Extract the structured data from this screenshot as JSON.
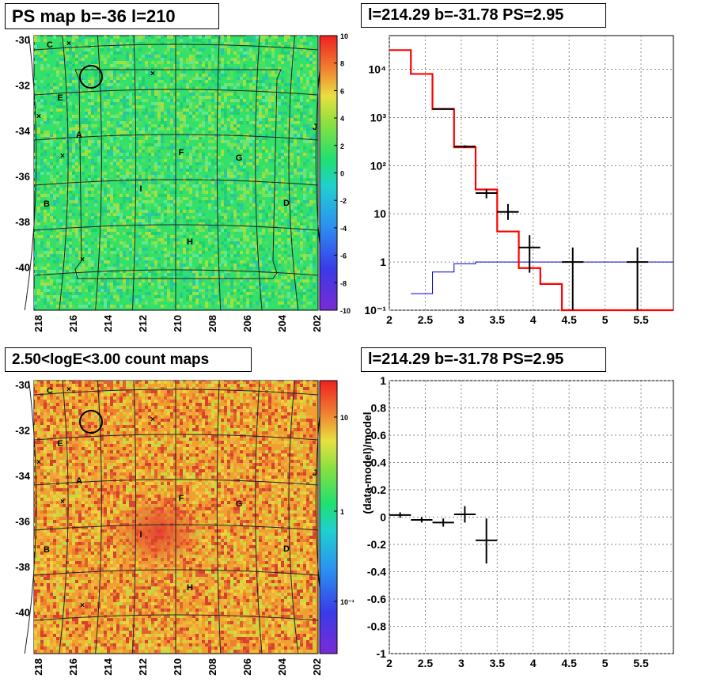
{
  "titles": {
    "tl": "PS map b=-36 l=210",
    "tr": "l=214.29 b=-31.78 PS=2.95",
    "bl": "2.50<logE<3.00 count maps",
    "br": "l=214.29 b=-31.78 PS=2.95"
  },
  "colors": {
    "data": "#000000",
    "model": "#ff0000",
    "background_model": "#0000cc",
    "grid": "#555555",
    "ps_map_base": "#33e06a",
    "count_map_base": "#f0a030"
  },
  "map_labels": [
    {
      "text": "C"
    },
    {
      "text": "E"
    },
    {
      "text": "A"
    },
    {
      "text": "B"
    },
    {
      "text": "F"
    },
    {
      "text": "G"
    },
    {
      "text": "D"
    },
    {
      "text": "I"
    },
    {
      "text": "H"
    },
    {
      "text": "J"
    }
  ],
  "chart_data": [
    {
      "type": "heatmap",
      "title": "PS map b=-36 l=210",
      "x_ticks": [
        "218",
        "216",
        "214",
        "212",
        "210",
        "208",
        "206",
        "204",
        "202"
      ],
      "y_ticks": [
        "-30",
        "-32",
        "-34",
        "-36",
        "-38",
        "-40"
      ],
      "colorbar_ticks": [
        "10",
        "8",
        "6",
        "4",
        "2",
        "0",
        "-2",
        "-4",
        "-6",
        "-8",
        "-10"
      ],
      "colorbar_range": [
        -10,
        10
      ],
      "xlim": [
        218,
        202
      ],
      "ylim": [
        -41.5,
        -29.7
      ]
    },
    {
      "type": "line",
      "title": "l=214.29 b=-31.78 PS=2.95",
      "x_ticks": [
        "2",
        "2.5",
        "3",
        "3.5",
        "4",
        "4.5",
        "5",
        "5.5"
      ],
      "y_ticks": [
        "10⁴",
        "10³",
        "10²",
        "10",
        "1",
        "10⁻¹"
      ],
      "y_scale": "log",
      "xlim": [
        2,
        5.95
      ],
      "ylim": [
        0.1,
        50000
      ],
      "model_step": {
        "edges": [
          2,
          2.3,
          2.6,
          2.9,
          3.2,
          3.5,
          3.8,
          4.1,
          4.4,
          5.95
        ],
        "values": [
          25000,
          8000,
          1500,
          240,
          32,
          4.3,
          0.75,
          0.35,
          0.1
        ]
      },
      "background_step": {
        "edges": [
          2.3,
          2.6,
          2.9,
          3.2,
          5.95
        ],
        "values": [
          0.22,
          0.62,
          0.92,
          1.0
        ]
      },
      "data_points": [
        {
          "x": 2.75,
          "y": 1500,
          "xerr": 0.15,
          "ylo": 1450,
          "yhi": 1550
        },
        {
          "x": 3.05,
          "y": 250,
          "xerr": 0.15,
          "ylo": 235,
          "yhi": 265
        },
        {
          "x": 3.35,
          "y": 27,
          "xerr": 0.15,
          "ylo": 21,
          "yhi": 33
        },
        {
          "x": 3.65,
          "y": 11,
          "xerr": 0.15,
          "ylo": 7.5,
          "yhi": 16
        },
        {
          "x": 3.95,
          "y": 2,
          "xerr": 0.15,
          "ylo": 0.6,
          "yhi": 3.6
        },
        {
          "x": 4.55,
          "y": 1,
          "xerr": 0.15,
          "ylo": 0.1,
          "yhi": 2
        },
        {
          "x": 5.45,
          "y": 1,
          "xerr": 0.15,
          "ylo": 0.1,
          "yhi": 2
        }
      ]
    },
    {
      "type": "heatmap",
      "title": "2.50<logE<3.00 count maps",
      "x_ticks": [
        "218",
        "216",
        "214",
        "212",
        "210",
        "208",
        "206",
        "204",
        "202"
      ],
      "y_ticks": [
        "-30",
        "-32",
        "-34",
        "-36",
        "-38",
        "-40"
      ],
      "colorbar_ticks": [
        "10",
        "1",
        "10⁻¹"
      ],
      "colorbar_scale": "log",
      "xlim": [
        218,
        202
      ],
      "ylim": [
        -41.5,
        -29.7
      ]
    },
    {
      "type": "scatter",
      "title": "l=214.29 b=-31.78 PS=2.95",
      "ylabel": "(data-model)/model",
      "x_ticks": [
        "2",
        "2.5",
        "3",
        "3.5",
        "4",
        "4.5",
        "5",
        "5.5"
      ],
      "y_ticks": [
        "1",
        "0.8",
        "0.6",
        "0.4",
        "0.2",
        "0",
        "-0.2",
        "-0.4",
        "-0.6",
        "-0.8",
        "-1"
      ],
      "xlim": [
        2,
        5.95
      ],
      "ylim": [
        -1,
        1
      ],
      "data_points": [
        {
          "x": 2.15,
          "y": 0.015,
          "xerr": 0.15,
          "ylo": -0.005,
          "yhi": 0.035
        },
        {
          "x": 2.45,
          "y": -0.02,
          "xerr": 0.15,
          "ylo": -0.04,
          "yhi": 0.0
        },
        {
          "x": 2.75,
          "y": -0.04,
          "xerr": 0.15,
          "ylo": -0.07,
          "yhi": -0.01
        },
        {
          "x": 3.05,
          "y": 0.02,
          "xerr": 0.15,
          "ylo": -0.04,
          "yhi": 0.08
        },
        {
          "x": 3.35,
          "y": -0.17,
          "xerr": 0.15,
          "ylo": -0.34,
          "yhi": -0.01
        }
      ]
    }
  ]
}
